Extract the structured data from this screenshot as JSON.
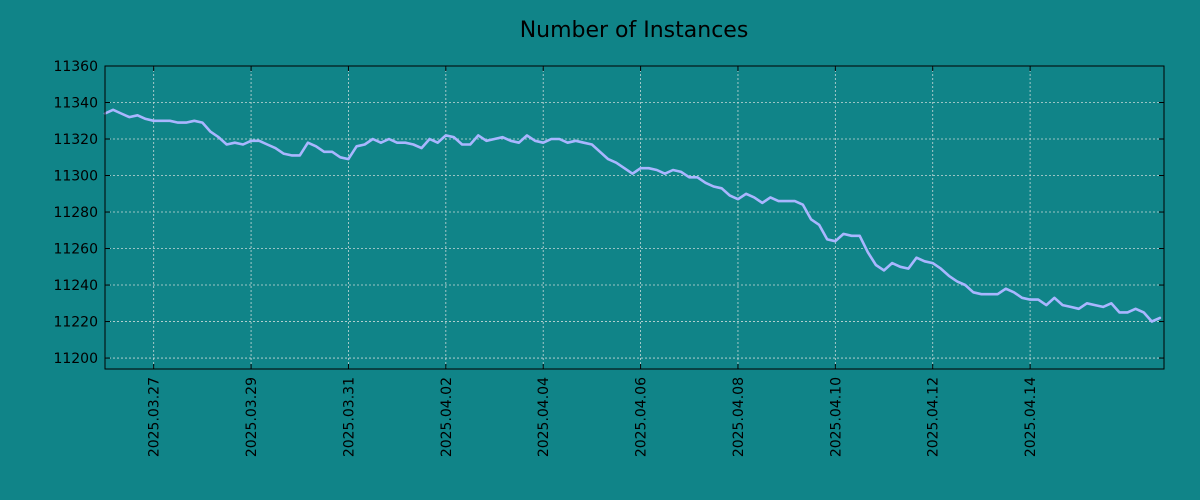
{
  "colors": {
    "background": "#108488",
    "line": "#a9b6ff",
    "axis": "#000000",
    "grid": "#c8d8d8"
  },
  "chart_data": {
    "type": "line",
    "title": "Number of Instances",
    "xlabel": "",
    "ylabel": "",
    "grid": true,
    "legend": "none",
    "ylim": [
      11194,
      11360
    ],
    "xlim": [
      "2025-03-26T00:00:00",
      "2025-04-16T18:00:00"
    ],
    "y_ticks": [
      11200,
      11220,
      11240,
      11260,
      11280,
      11300,
      11320,
      11340,
      11360
    ],
    "x_ticks": [
      {
        "date": "2025-03-27",
        "label": "2025.03.27"
      },
      {
        "date": "2025-03-29",
        "label": "2025.03.29"
      },
      {
        "date": "2025-03-31",
        "label": "2025.03.31"
      },
      {
        "date": "2025-04-02",
        "label": "2025.04.02"
      },
      {
        "date": "2025-04-04",
        "label": "2025.04.04"
      },
      {
        "date": "2025-04-06",
        "label": "2025.04.06"
      },
      {
        "date": "2025-04-08",
        "label": "2025.04.08"
      },
      {
        "date": "2025-04-10",
        "label": "2025.04.10"
      },
      {
        "date": "2025-04-12",
        "label": "2025.04.12"
      },
      {
        "date": "2025-04-14",
        "label": "2025.04.14"
      }
    ],
    "series": [
      {
        "name": "",
        "x": [
          "2025-03-26T00:00",
          "2025-03-26T04:00",
          "2025-03-26T08:00",
          "2025-03-26T12:00",
          "2025-03-26T16:00",
          "2025-03-26T20:00",
          "2025-03-27T00:00",
          "2025-03-27T04:00",
          "2025-03-27T08:00",
          "2025-03-27T12:00",
          "2025-03-27T16:00",
          "2025-03-27T20:00",
          "2025-03-28T00:00",
          "2025-03-28T04:00",
          "2025-03-28T08:00",
          "2025-03-28T12:00",
          "2025-03-28T16:00",
          "2025-03-28T20:00",
          "2025-03-29T00:00",
          "2025-03-29T04:00",
          "2025-03-29T08:00",
          "2025-03-29T12:00",
          "2025-03-29T16:00",
          "2025-03-29T20:00",
          "2025-03-30T00:00",
          "2025-03-30T04:00",
          "2025-03-30T08:00",
          "2025-03-30T12:00",
          "2025-03-30T16:00",
          "2025-03-30T20:00",
          "2025-03-31T00:00",
          "2025-03-31T04:00",
          "2025-03-31T08:00",
          "2025-03-31T12:00",
          "2025-03-31T16:00",
          "2025-03-31T20:00",
          "2025-04-01T00:00",
          "2025-04-01T04:00",
          "2025-04-01T08:00",
          "2025-04-01T12:00",
          "2025-04-01T16:00",
          "2025-04-01T20:00",
          "2025-04-02T00:00",
          "2025-04-02T04:00",
          "2025-04-02T08:00",
          "2025-04-02T12:00",
          "2025-04-02T16:00",
          "2025-04-02T20:00",
          "2025-04-03T00:00",
          "2025-04-03T04:00",
          "2025-04-03T08:00",
          "2025-04-03T12:00",
          "2025-04-03T16:00",
          "2025-04-03T20:00",
          "2025-04-04T00:00",
          "2025-04-04T04:00",
          "2025-04-04T08:00",
          "2025-04-04T12:00",
          "2025-04-04T16:00",
          "2025-04-04T20:00",
          "2025-04-05T00:00",
          "2025-04-05T04:00",
          "2025-04-05T08:00",
          "2025-04-05T12:00",
          "2025-04-05T16:00",
          "2025-04-05T20:00",
          "2025-04-06T00:00",
          "2025-04-06T04:00",
          "2025-04-06T08:00",
          "2025-04-06T12:00",
          "2025-04-06T16:00",
          "2025-04-06T20:00",
          "2025-04-07T00:00",
          "2025-04-07T04:00",
          "2025-04-07T08:00",
          "2025-04-07T12:00",
          "2025-04-07T16:00",
          "2025-04-07T20:00",
          "2025-04-08T00:00",
          "2025-04-08T04:00",
          "2025-04-08T08:00",
          "2025-04-08T12:00",
          "2025-04-08T16:00",
          "2025-04-08T20:00",
          "2025-04-09T00:00",
          "2025-04-09T04:00",
          "2025-04-09T08:00",
          "2025-04-09T12:00",
          "2025-04-09T16:00",
          "2025-04-09T20:00",
          "2025-04-10T00:00",
          "2025-04-10T04:00",
          "2025-04-10T08:00",
          "2025-04-10T12:00",
          "2025-04-10T16:00",
          "2025-04-10T20:00",
          "2025-04-11T00:00",
          "2025-04-11T04:00",
          "2025-04-11T08:00",
          "2025-04-11T12:00",
          "2025-04-11T16:00",
          "2025-04-11T20:00",
          "2025-04-12T00:00",
          "2025-04-12T04:00",
          "2025-04-12T08:00",
          "2025-04-12T12:00",
          "2025-04-12T16:00",
          "2025-04-12T20:00",
          "2025-04-13T00:00",
          "2025-04-13T04:00",
          "2025-04-13T08:00",
          "2025-04-13T12:00",
          "2025-04-13T16:00",
          "2025-04-13T20:00",
          "2025-04-14T00:00",
          "2025-04-14T04:00",
          "2025-04-14T08:00",
          "2025-04-14T12:00",
          "2025-04-14T16:00",
          "2025-04-14T20:00",
          "2025-04-15T00:00",
          "2025-04-15T04:00",
          "2025-04-15T08:00",
          "2025-04-15T12:00",
          "2025-04-15T16:00",
          "2025-04-15T20:00",
          "2025-04-16T00:00",
          "2025-04-16T04:00",
          "2025-04-16T08:00",
          "2025-04-16T12:00",
          "2025-04-16T16:00"
        ],
        "y": [
          11334,
          11336,
          11334,
          11332,
          11333,
          11331,
          11330,
          11330,
          11330,
          11329,
          11329,
          11330,
          11329,
          11324,
          11321,
          11317,
          11318,
          11317,
          11319,
          11319,
          11317,
          11315,
          11312,
          11311,
          11311,
          11318,
          11316,
          11313,
          11313,
          11310,
          11309,
          11316,
          11317,
          11320,
          11318,
          11320,
          11318,
          11318,
          11317,
          11315,
          11320,
          11318,
          11322,
          11321,
          11317,
          11317,
          11322,
          11319,
          11320,
          11321,
          11319,
          11318,
          11322,
          11319,
          11318,
          11320,
          11320,
          11318,
          11319,
          11318,
          11317,
          11313,
          11309,
          11307,
          11304,
          11301,
          11304,
          11304,
          11303,
          11301,
          11303,
          11302,
          11299,
          11299,
          11296,
          11294,
          11293,
          11289,
          11287,
          11290,
          11288,
          11285,
          11288,
          11286,
          11286,
          11286,
          11284,
          11276,
          11273,
          11265,
          11264,
          11268,
          11267,
          11267,
          11258,
          11251,
          11248,
          11252,
          11250,
          11249,
          11255,
          11253,
          11252,
          11249,
          11245,
          11242,
          11240,
          11236,
          11235,
          11235,
          11235,
          11238,
          11236,
          11233,
          11232,
          11232,
          11229,
          11233,
          11229,
          11228,
          11227,
          11230,
          11229,
          11228,
          11230,
          11225,
          11225,
          11227,
          11225,
          11220,
          11222
        ]
      }
    ]
  }
}
